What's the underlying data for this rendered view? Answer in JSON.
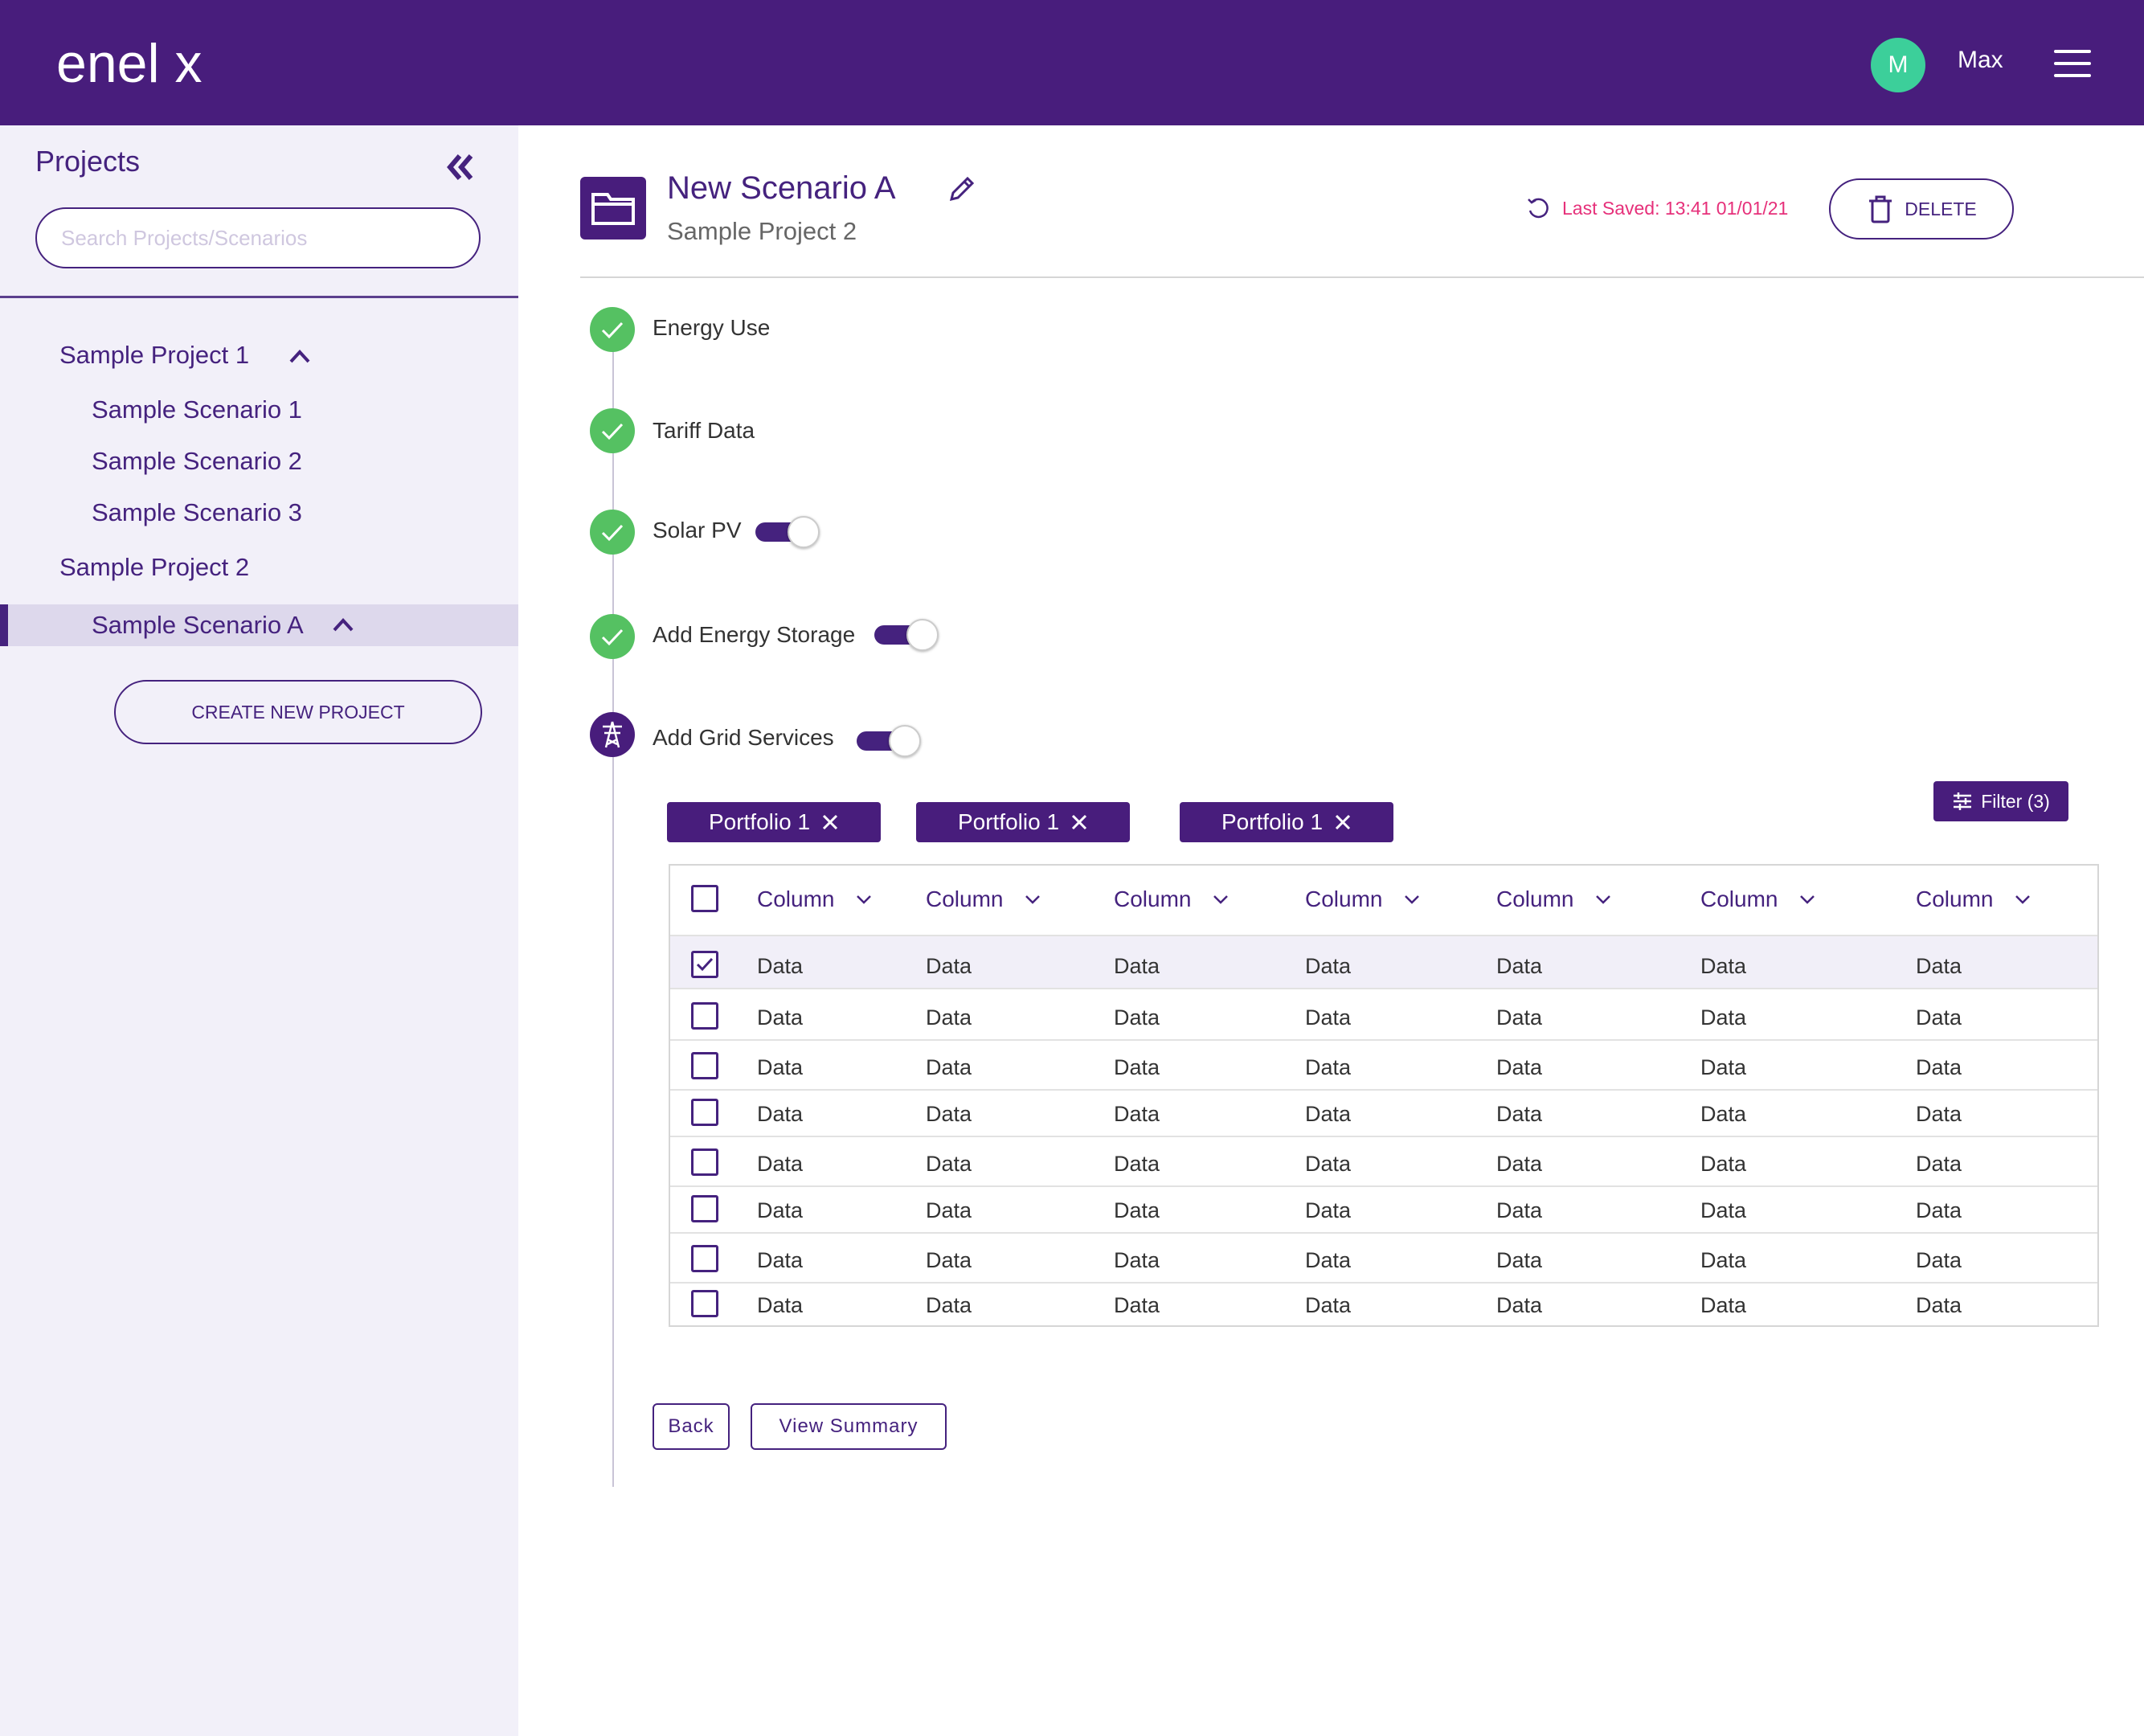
{
  "header": {
    "logo": "enel x",
    "avatar_initial": "M",
    "user_name": "Max",
    "menu_icon": "hamburger-menu-icon"
  },
  "sidebar": {
    "title": "Projects",
    "search_placeholder": "Search Projects/Scenarios",
    "items": [
      {
        "label": "Sample Project 1",
        "level": 0,
        "expanded": true
      },
      {
        "label": "Sample Scenario 1",
        "level": 1
      },
      {
        "label": "Sample Scenario 2",
        "level": 1
      },
      {
        "label": "Sample Scenario 3",
        "level": 1
      },
      {
        "label": "Sample Project 2",
        "level": 0
      },
      {
        "label": "Sample Scenario A",
        "level": 1,
        "active": true,
        "expanded": true
      }
    ],
    "create_button": "CREATE NEW PROJECT"
  },
  "scenario": {
    "title": "New Scenario A",
    "project": "Sample Project 2",
    "last_saved": "Last Saved: 13:41 01/01/21",
    "delete_label": "DELETE"
  },
  "steps": [
    {
      "label": "Energy Use",
      "status": "complete"
    },
    {
      "label": "Tariff Data",
      "status": "complete"
    },
    {
      "label": "Solar PV",
      "status": "complete",
      "toggle": true
    },
    {
      "label": "Add Energy Storage",
      "status": "complete",
      "toggle": true
    },
    {
      "label": "Add Grid Services",
      "status": "current",
      "toggle": true
    }
  ],
  "filters": {
    "chips": [
      "Portfolio 1",
      "Portfolio 1",
      "Portfolio 1"
    ],
    "filter_button": "Filter (3)"
  },
  "table": {
    "columns": [
      "Column",
      "Column",
      "Column",
      "Column",
      "Column",
      "Column",
      "Column"
    ],
    "rows": [
      {
        "checked": true,
        "cells": [
          "Data",
          "Data",
          "Data",
          "Data",
          "Data",
          "Data",
          "Data"
        ]
      },
      {
        "checked": false,
        "cells": [
          "Data",
          "Data",
          "Data",
          "Data",
          "Data",
          "Data",
          "Data"
        ]
      },
      {
        "checked": false,
        "cells": [
          "Data",
          "Data",
          "Data",
          "Data",
          "Data",
          "Data",
          "Data"
        ]
      },
      {
        "checked": false,
        "cells": [
          "Data",
          "Data",
          "Data",
          "Data",
          "Data",
          "Data",
          "Data"
        ]
      },
      {
        "checked": false,
        "cells": [
          "Data",
          "Data",
          "Data",
          "Data",
          "Data",
          "Data",
          "Data"
        ]
      },
      {
        "checked": false,
        "cells": [
          "Data",
          "Data",
          "Data",
          "Data",
          "Data",
          "Data",
          "Data"
        ]
      },
      {
        "checked": false,
        "cells": [
          "Data",
          "Data",
          "Data",
          "Data",
          "Data",
          "Data",
          "Data"
        ]
      },
      {
        "checked": false,
        "cells": [
          "Data",
          "Data",
          "Data",
          "Data",
          "Data",
          "Data",
          "Data"
        ]
      }
    ]
  },
  "actions": {
    "back": "Back",
    "view_summary": "View Summary"
  },
  "colors": {
    "brand_purple": "#481d7c",
    "accent_green": "#55c162",
    "avatar_green": "#3ccf9a",
    "saved_pink": "#e6307a",
    "sidebar_bg": "#f2f0f9"
  }
}
